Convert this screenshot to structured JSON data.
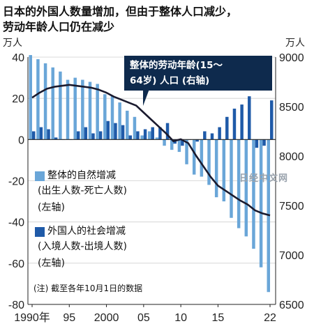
{
  "title_line1": "日本的外国人数量增加，但由于整体人口减少，",
  "title_line2": "劳动年龄人口仍在减少",
  "unit_left": "万人",
  "unit_right": "万人",
  "callout_line1": "整体的劳动年龄(15～",
  "callout_line2": "64岁) 人口 (右轴)",
  "legend": {
    "natural": [
      "整体的自然增减",
      "(出生人数-死亡人数)",
      "(左轴)"
    ],
    "foreign": [
      "外国人的社会增减",
      "(入境人数-出境人数)",
      "(左轴)"
    ]
  },
  "note": "(注) 截至各年10月1日的数据",
  "watermark": "日经中文网",
  "colors": {
    "natural": "#6aa6d8",
    "foreign": "#1f5aa8",
    "line": "#1a1a2e",
    "callout": "#0e2a4d"
  },
  "chart_data": {
    "type": "bar+line",
    "x": [
      1990,
      1991,
      1992,
      1993,
      1994,
      1995,
      1996,
      1997,
      1998,
      1999,
      2000,
      2001,
      2002,
      2003,
      2004,
      2005,
      2006,
      2007,
      2008,
      2009,
      2010,
      2011,
      2012,
      2013,
      2014,
      2015,
      2016,
      2017,
      2018,
      2019,
      2020,
      2021,
      2022
    ],
    "x_tick_labels": [
      "1990年",
      "95",
      "2000",
      "05",
      "10",
      "15",
      "22"
    ],
    "left_axis": {
      "ylim": [
        -80,
        40
      ],
      "ticks": [
        "40",
        "20",
        "0",
        "-20",
        "-40",
        "-60",
        "-80"
      ]
    },
    "right_axis": {
      "ylim": [
        6500,
        9000
      ],
      "ticks": [
        "9000",
        "8500",
        "8000",
        "7500",
        "7000",
        "6500"
      ]
    },
    "series": [
      {
        "name": "整体的自然增减 (出生人数-死亡人数)",
        "axis": "left",
        "type": "bar",
        "values": [
          41,
          39,
          37,
          35,
          33,
          29,
          30,
          29,
          28,
          27,
          22,
          21,
          18,
          14,
          11,
          2,
          4,
          1,
          -3,
          -5,
          -6,
          -12,
          -17,
          -18,
          -22,
          -28,
          -30,
          -38,
          -43,
          -47,
          -53,
          -62,
          -74
        ]
      },
      {
        "name": "外国人的社会增减 (入境人数-出境人数)",
        "axis": "left",
        "type": "bar",
        "values": [
          4,
          6,
          5,
          1,
          0,
          0,
          4,
          6,
          3,
          4,
          9,
          8,
          7,
          2,
          4,
          5,
          6,
          6,
          8,
          -2,
          -3,
          0,
          -1,
          4,
          3,
          6,
          11,
          15,
          17,
          21,
          -4,
          -3,
          19
        ]
      },
      {
        "name": "整体的劳动年龄(15～64岁) 人口 (右轴)",
        "axis": "right",
        "type": "line",
        "values": [
          8590,
          8640,
          8680,
          8700,
          8710,
          8720,
          8710,
          8700,
          8690,
          8670,
          8640,
          8600,
          8570,
          8540,
          8510,
          8440,
          8370,
          8300,
          8230,
          8150,
          8170,
          8130,
          8010,
          7900,
          7790,
          7700,
          7650,
          7600,
          7550,
          7510,
          7450,
          7420,
          7400
        ]
      }
    ]
  }
}
